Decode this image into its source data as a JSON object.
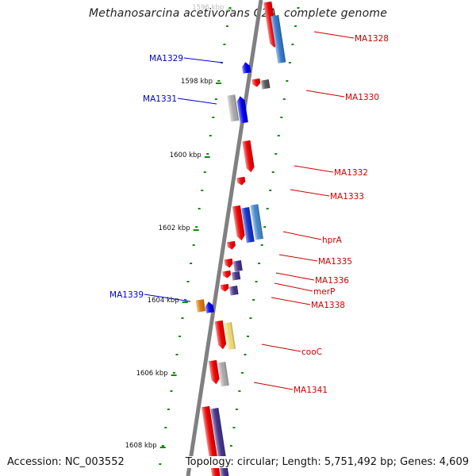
{
  "title": "Methanosarcina acetivorans C2A, complete genome",
  "accession": "Accession: NC_003552",
  "topology": "Topology: circular; Length: 5,751,492 bp; Genes: 4,609",
  "colors": {
    "backbone": "#808080",
    "tick": "#118811",
    "forward_label": "#cc0000",
    "reverse_label": "#0000cc"
  },
  "ruler_labels": [
    {
      "text": "1596 kbp",
      "faded": true
    },
    {
      "text": "1598 kbp",
      "faded": false
    },
    {
      "text": "1600 kbp",
      "faded": false
    },
    {
      "text": "1602 kbp",
      "faded": false
    },
    {
      "text": "1604 kbp",
      "faded": false
    },
    {
      "text": "1606 kbp",
      "faded": false
    },
    {
      "text": "1608 kbp",
      "faded": false
    }
  ],
  "gene_labels": [
    {
      "text": "MA1328",
      "strand": "forward"
    },
    {
      "text": "MA1329",
      "strand": "reverse"
    },
    {
      "text": "MA1330",
      "strand": "forward"
    },
    {
      "text": "MA1331",
      "strand": "reverse"
    },
    {
      "text": "MA1332",
      "strand": "forward"
    },
    {
      "text": "MA1333",
      "strand": "forward"
    },
    {
      "text": "hprA",
      "strand": "forward"
    },
    {
      "text": "MA1335",
      "strand": "forward"
    },
    {
      "text": "MA1336",
      "strand": "forward"
    },
    {
      "text": "merP",
      "strand": "forward"
    },
    {
      "text": "MA1338",
      "strand": "forward"
    },
    {
      "text": "MA1339",
      "strand": "reverse"
    },
    {
      "text": "cooC",
      "strand": "forward"
    },
    {
      "text": "MA1341",
      "strand": "forward"
    }
  ],
  "features": [
    {
      "strand": "forward",
      "lane": 0,
      "color": "#ee0000",
      "shape": "arrow"
    },
    {
      "strand": "forward",
      "lane": 1,
      "color": "#3377cc",
      "shape": "box"
    },
    {
      "strand": "reverse",
      "lane": 0,
      "color": "#0000ee",
      "shape": "arrow"
    },
    {
      "strand": "forward",
      "lane": 0,
      "color": "#ee0000",
      "shape": "arrow"
    },
    {
      "strand": "forward",
      "lane": 1,
      "color": "#555555",
      "shape": "box"
    },
    {
      "strand": "reverse",
      "lane": 1,
      "color": "#aaaaaa",
      "shape": "box"
    },
    {
      "strand": "reverse",
      "lane": 0,
      "color": "#0000ee",
      "shape": "arrow"
    },
    {
      "strand": "forward",
      "lane": 0,
      "color": "#ee0000",
      "shape": "arrow"
    },
    {
      "strand": "forward",
      "lane": 0,
      "color": "#ee0000",
      "shape": "arrow"
    },
    {
      "strand": "forward",
      "lane": 0,
      "color": "#ee0000",
      "shape": "arrow"
    },
    {
      "strand": "forward",
      "lane": 1,
      "color": "#1133cc",
      "shape": "box"
    },
    {
      "strand": "forward",
      "lane": 2,
      "color": "#4488cc",
      "shape": "box"
    },
    {
      "strand": "forward",
      "lane": 0,
      "color": "#ee0000",
      "shape": "arrow"
    },
    {
      "strand": "forward",
      "lane": 0,
      "color": "#ee0000",
      "shape": "arrow"
    },
    {
      "strand": "forward",
      "lane": 1,
      "color": "#443388",
      "shape": "box"
    },
    {
      "strand": "forward",
      "lane": 0,
      "color": "#ee0000",
      "shape": "arrow"
    },
    {
      "strand": "forward",
      "lane": 1,
      "color": "#443388",
      "shape": "box"
    },
    {
      "strand": "forward",
      "lane": 0,
      "color": "#ee0000",
      "shape": "arrow"
    },
    {
      "strand": "forward",
      "lane": 1,
      "color": "#443388",
      "shape": "box"
    },
    {
      "strand": "reverse",
      "lane": 1,
      "color": "#dd7700",
      "shape": "box"
    },
    {
      "strand": "reverse",
      "lane": 0,
      "color": "#0000ee",
      "shape": "arrow"
    },
    {
      "strand": "forward",
      "lane": 0,
      "color": "#ee0000",
      "shape": "arrow"
    },
    {
      "strand": "forward",
      "lane": 1,
      "color": "#eedd77",
      "shape": "box"
    },
    {
      "strand": "forward",
      "lane": 0,
      "color": "#ee0000",
      "shape": "arrow"
    },
    {
      "strand": "forward",
      "lane": 1,
      "color": "#aaaaaa",
      "shape": "box"
    },
    {
      "strand": "forward",
      "lane": 0,
      "color": "#ee0000",
      "shape": "box"
    },
    {
      "strand": "forward",
      "lane": 1,
      "color": "#443388",
      "shape": "box"
    }
  ]
}
